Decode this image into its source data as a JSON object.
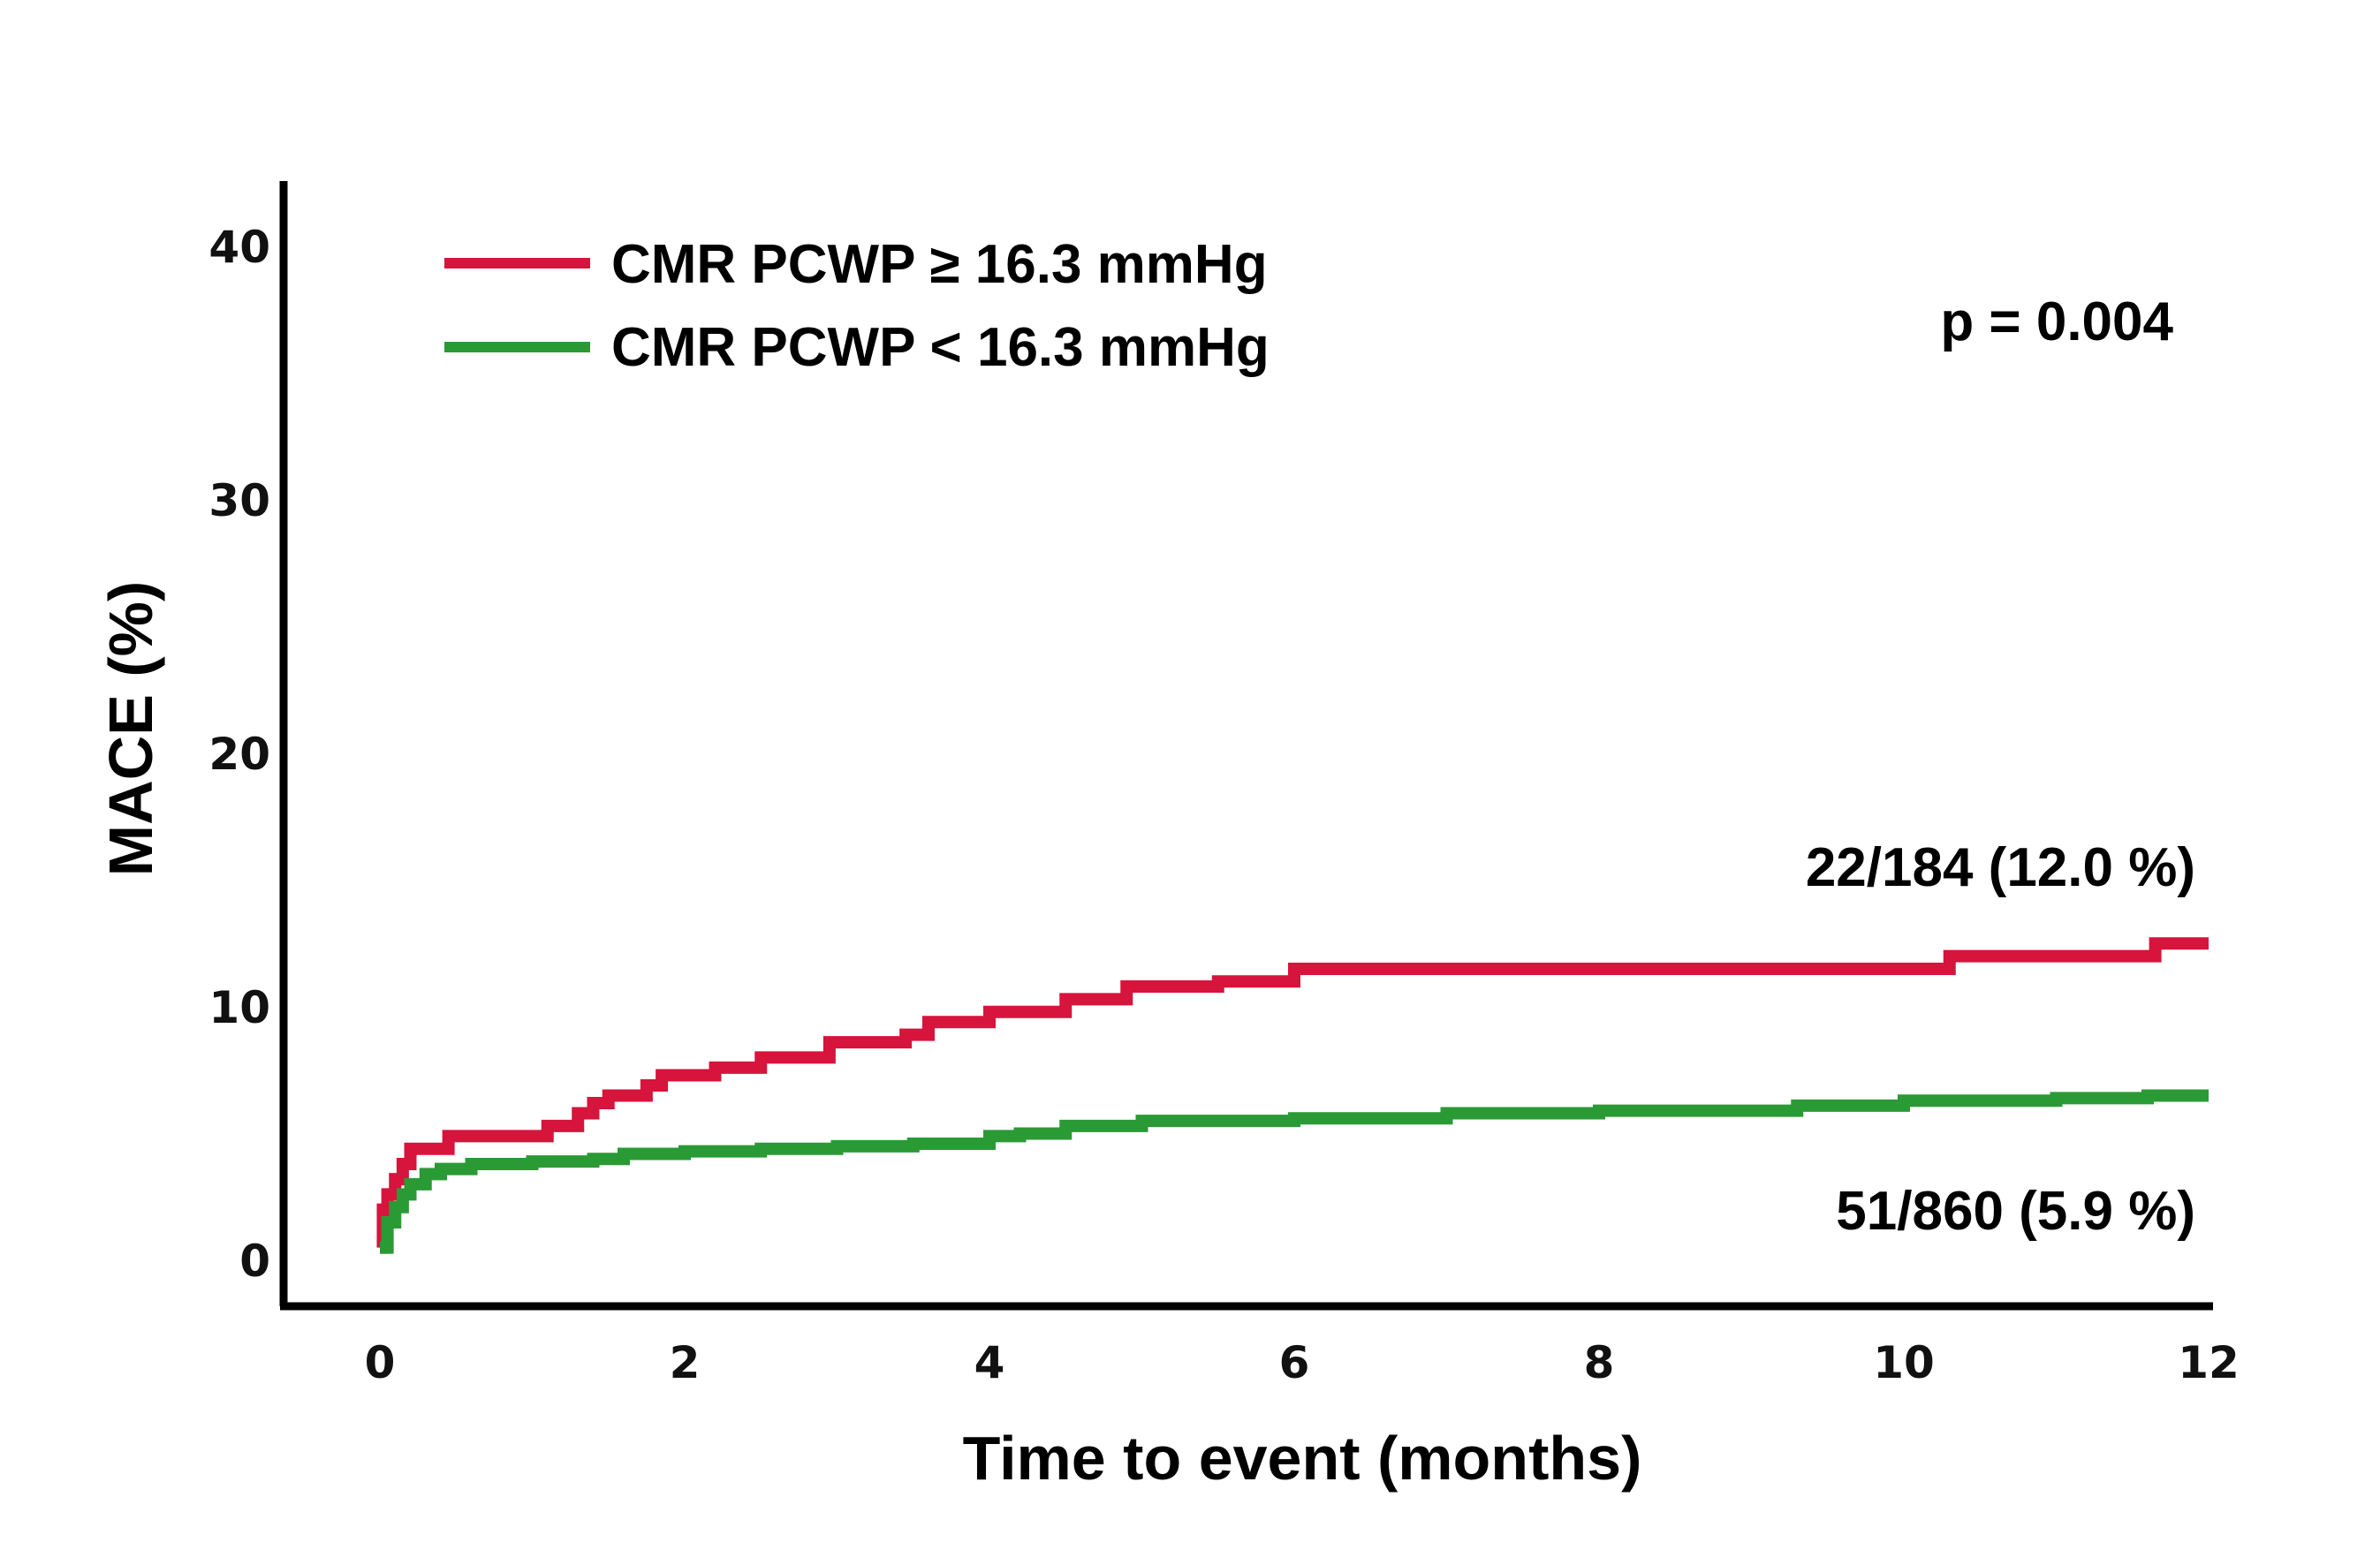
{
  "chart_data": {
    "type": "line",
    "step": true,
    "xlabel": "Time to event (months)",
    "ylabel": "MACE (%)",
    "xlim": [
      0,
      12
    ],
    "ylim": [
      0,
      42
    ],
    "x_ticks": [
      "0",
      "2",
      "4",
      "6",
      "8",
      "10",
      "12"
    ],
    "y_ticks": [
      "0",
      "10",
      "20",
      "30",
      "40"
    ],
    "grid": false,
    "legend_position": "top-left",
    "series": [
      {
        "name": "CMR PCWP ≥ 16.3 mmHg",
        "color": "#d6143c",
        "x": [
          0,
          0.02,
          0.05,
          0.1,
          0.15,
          0.2,
          0.45,
          0.7,
          1.1,
          1.3,
          1.4,
          1.5,
          1.75,
          1.85,
          2.2,
          2.5,
          2.95,
          3.45,
          3.6,
          4.0,
          4.5,
          4.9,
          5.5,
          6.0,
          7.0,
          8.0,
          9.0,
          10.3,
          11.0,
          11.65,
          12.0
        ],
        "values": [
          0.5,
          2.0,
          2.6,
          3.2,
          3.8,
          4.4,
          4.9,
          4.9,
          5.3,
          5.8,
          6.2,
          6.5,
          6.9,
          7.3,
          7.6,
          8.0,
          8.6,
          8.9,
          9.4,
          9.8,
          10.3,
          10.8,
          11.0,
          11.5,
          11.5,
          11.5,
          11.5,
          12.0,
          12.0,
          12.5,
          12.5
        ]
      },
      {
        "name": "CMR PCWP < 16.3 mmHg",
        "color": "#2a9a35",
        "x": [
          0,
          0.05,
          0.1,
          0.15,
          0.2,
          0.3,
          0.4,
          0.6,
          1.0,
          1.4,
          1.6,
          2.0,
          2.5,
          3.0,
          3.5,
          4.0,
          4.2,
          4.5,
          5.0,
          6.0,
          7.0,
          8.0,
          9.0,
          9.3,
          10.0,
          11.0,
          11.6,
          12.0
        ],
        "values": [
          0.5,
          1.5,
          2.1,
          2.6,
          3.0,
          3.4,
          3.6,
          3.8,
          3.9,
          4.0,
          4.2,
          4.3,
          4.4,
          4.5,
          4.6,
          4.9,
          5.0,
          5.3,
          5.5,
          5.6,
          5.8,
          5.9,
          5.9,
          6.1,
          6.3,
          6.4,
          6.5,
          6.5
        ]
      }
    ],
    "annotations": {
      "p_value": "p = 0.004",
      "high_group_count": "22/184 (12.0 %)",
      "low_group_count": "51/860 (5.9 %)"
    }
  }
}
